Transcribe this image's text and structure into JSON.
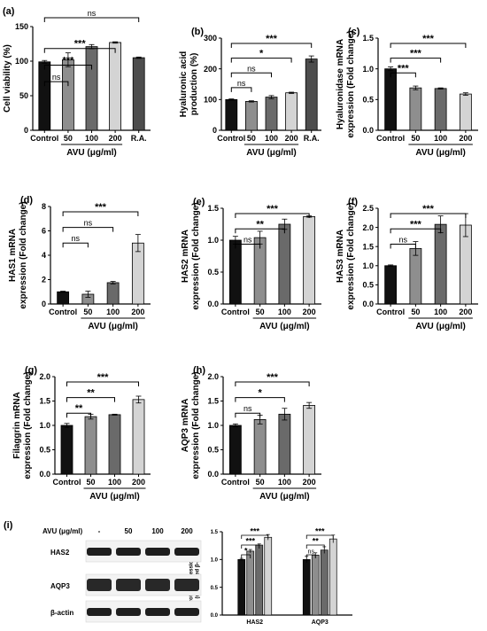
{
  "fill_colors": [
    "#111111",
    "#8e8e8e",
    "#6a6a6a",
    "#d4d4d4",
    "#4d4d4d"
  ],
  "chart_data": [
    {
      "id": "a",
      "type": "bar",
      "panel_label": "(a)",
      "ylabel": "Cell viability (%)",
      "xlabel": "AVU (μg/ml)",
      "categories": [
        "Control",
        "50",
        "100",
        "200",
        "R.A."
      ],
      "series": [
        {
          "values": [
            99,
            102,
            121,
            127,
            105
          ],
          "errors": [
            2,
            10,
            3,
            1,
            1
          ]
        }
      ],
      "ylim": [
        0,
        150
      ],
      "yticks": [
        0,
        50,
        100,
        150
      ],
      "sig": [
        {
          "from": 0,
          "to": 1,
          "label": "ns"
        },
        {
          "from": 0,
          "to": 2,
          "label": "***"
        },
        {
          "from": 0,
          "to": 3,
          "label": "***"
        },
        {
          "from": 0,
          "to": 4,
          "label": "ns"
        }
      ]
    },
    {
      "id": "b",
      "type": "bar",
      "panel_label": "(b)",
      "ylabel": "Hyaluronic acid\nproduction (%)",
      "xlabel": "AVU (μg/ml)",
      "categories": [
        "Control",
        "50",
        "100",
        "200",
        "R.A."
      ],
      "series": [
        {
          "values": [
            100,
            94,
            108,
            122,
            232
          ],
          "errors": [
            2,
            2,
            5,
            2,
            10
          ]
        }
      ],
      "ylim": [
        0,
        300
      ],
      "yticks": [
        0,
        100,
        200,
        300
      ],
      "sig": [
        {
          "from": 0,
          "to": 1,
          "label": "ns"
        },
        {
          "from": 0,
          "to": 2,
          "label": "ns"
        },
        {
          "from": 0,
          "to": 3,
          "label": "*"
        },
        {
          "from": 0,
          "to": 4,
          "label": "***"
        }
      ]
    },
    {
      "id": "c",
      "type": "bar",
      "panel_label": "(c)",
      "ylabel": "Hyaluronidase mRNA\nexpression (Fold change)",
      "xlabel": "AVU (μg/ml)",
      "categories": [
        "Control",
        "50",
        "100",
        "200"
      ],
      "series": [
        {
          "values": [
            1.0,
            0.69,
            0.68,
            0.59
          ],
          "errors": [
            0.03,
            0.03,
            0.01,
            0.02
          ]
        }
      ],
      "ylim": [
        0,
        1.5
      ],
      "yticks": [
        0.0,
        0.5,
        1.0,
        1.5
      ],
      "tickdec": 1,
      "sig": [
        {
          "from": 0,
          "to": 1,
          "label": "***"
        },
        {
          "from": 0,
          "to": 2,
          "label": "***"
        },
        {
          "from": 0,
          "to": 3,
          "label": "***"
        }
      ]
    },
    {
      "id": "d",
      "type": "bar",
      "panel_label": "(d)",
      "ylabel": "HAS1 mRNA\nexpression (Fold change)",
      "xlabel": "AVU (μg/ml)",
      "categories": [
        "Control",
        "50",
        "100",
        "200"
      ],
      "series": [
        {
          "values": [
            1.0,
            0.8,
            1.75,
            5.0
          ],
          "errors": [
            0.05,
            0.25,
            0.1,
            0.7
          ]
        }
      ],
      "ylim": [
        0,
        8
      ],
      "yticks": [
        0,
        2,
        4,
        6,
        8
      ],
      "sig": [
        {
          "from": 0,
          "to": 1,
          "label": "ns"
        },
        {
          "from": 0,
          "to": 2,
          "label": "ns"
        },
        {
          "from": 0,
          "to": 3,
          "label": "***"
        }
      ]
    },
    {
      "id": "e",
      "type": "bar",
      "panel_label": "(e)",
      "ylabel": "HAS2 mRNA\nexpression (Fold change)",
      "xlabel": "AVU (μg/ml)",
      "categories": [
        "Control",
        "50",
        "100",
        "200"
      ],
      "series": [
        {
          "values": [
            1.0,
            1.04,
            1.25,
            1.37
          ],
          "errors": [
            0.06,
            0.1,
            0.08,
            0.01
          ]
        }
      ],
      "ylim": [
        0,
        1.5
      ],
      "yticks": [
        0.0,
        0.5,
        1.0,
        1.5
      ],
      "tickdec": 1,
      "sig": [
        {
          "from": 0,
          "to": 1,
          "label": "ns"
        },
        {
          "from": 0,
          "to": 2,
          "label": "**"
        },
        {
          "from": 0,
          "to": 3,
          "label": "***"
        }
      ]
    },
    {
      "id": "f",
      "type": "bar",
      "panel_label": "(f)",
      "ylabel": "HAS3 mRNA\nexpression (Fold change)",
      "xlabel": "AVU (μg/ml)",
      "categories": [
        "Control",
        "50",
        "100",
        "200"
      ],
      "series": [
        {
          "values": [
            1.0,
            1.45,
            2.08,
            2.06
          ],
          "errors": [
            0.02,
            0.18,
            0.22,
            0.3
          ]
        }
      ],
      "ylim": [
        0,
        2.5
      ],
      "yticks": [
        0.0,
        0.5,
        1.0,
        1.5,
        2.0,
        2.5
      ],
      "tickdec": 1,
      "sig": [
        {
          "from": 0,
          "to": 1,
          "label": "ns"
        },
        {
          "from": 0,
          "to": 2,
          "label": "***"
        },
        {
          "from": 0,
          "to": 3,
          "label": "***"
        }
      ]
    },
    {
      "id": "g",
      "type": "bar",
      "panel_label": "(g)",
      "ylabel": "Filaggrin mRNA\nexpression (Fold change)",
      "xlabel": "AVU (μg/ml)",
      "categories": [
        "Control",
        "50",
        "100",
        "200"
      ],
      "series": [
        {
          "values": [
            1.0,
            1.18,
            1.22,
            1.53
          ],
          "errors": [
            0.04,
            0.05,
            0.01,
            0.07
          ]
        }
      ],
      "ylim": [
        0,
        2.0
      ],
      "yticks": [
        0.0,
        0.5,
        1.0,
        1.5,
        2.0
      ],
      "tickdec": 1,
      "sig": [
        {
          "from": 0,
          "to": 1,
          "label": "**"
        },
        {
          "from": 0,
          "to": 2,
          "label": "**"
        },
        {
          "from": 0,
          "to": 3,
          "label": "***"
        }
      ]
    },
    {
      "id": "h",
      "type": "bar",
      "panel_label": "(h)",
      "ylabel": "AQP3 mRNA\nexpression (Fold change)",
      "xlabel": "AVU (μg/ml)",
      "categories": [
        "Control",
        "50",
        "100",
        "200"
      ],
      "series": [
        {
          "values": [
            1.0,
            1.12,
            1.23,
            1.41
          ],
          "errors": [
            0.03,
            0.09,
            0.12,
            0.06
          ]
        }
      ],
      "ylim": [
        0,
        2.0
      ],
      "yticks": [
        0.0,
        0.5,
        1.0,
        1.5,
        2.0
      ],
      "tickdec": 1,
      "sig": [
        {
          "from": 0,
          "to": 1,
          "label": "ns"
        },
        {
          "from": 0,
          "to": 2,
          "label": "*"
        },
        {
          "from": 0,
          "to": 3,
          "label": "***"
        }
      ]
    },
    {
      "id": "i",
      "type": "bar",
      "panel_label": "(i)",
      "ylabel": "Protein expression levels\n(normalized β-actin)",
      "groups": [
        "HAS2",
        "AQP3"
      ],
      "series": [
        {
          "values": [
            1.0,
            1.0
          ],
          "errors": [
            0.02,
            0.06
          ]
        },
        {
          "values": [
            1.15,
            1.08
          ],
          "errors": [
            0.03,
            0.04
          ]
        },
        {
          "values": [
            1.26,
            1.17
          ],
          "errors": [
            0.02,
            0.06
          ]
        },
        {
          "values": [
            1.4,
            1.37
          ],
          "errors": [
            0.05,
            0.07
          ]
        }
      ],
      "ylim": [
        0,
        1.5
      ],
      "yticks": [
        0.0,
        0.5,
        1.0,
        1.5
      ],
      "tickdec": 1,
      "sig": [
        {
          "group": 0,
          "from": 0,
          "to": 1,
          "label": "*"
        },
        {
          "group": 0,
          "from": 0,
          "to": 2,
          "label": "***"
        },
        {
          "group": 0,
          "from": 0,
          "to": 3,
          "label": "***"
        },
        {
          "group": 1,
          "from": 0,
          "to": 1,
          "label": "ns"
        },
        {
          "group": 1,
          "from": 0,
          "to": 2,
          "label": "**"
        },
        {
          "group": 1,
          "from": 0,
          "to": 3,
          "label": "***"
        }
      ]
    }
  ],
  "western_blot": {
    "header_label": "AVU (μg/ml)",
    "lane_labels": [
      "-",
      "50",
      "100",
      "200"
    ],
    "rows": [
      {
        "label": "HAS2",
        "intensity": [
          0.95,
          0.95,
          0.95,
          0.95
        ]
      },
      {
        "label": "AQP3",
        "intensity": [
          0.9,
          0.9,
          0.9,
          0.9
        ]
      },
      {
        "label": "β-actin",
        "intensity": [
          0.95,
          0.95,
          0.95,
          0.95
        ]
      }
    ]
  }
}
